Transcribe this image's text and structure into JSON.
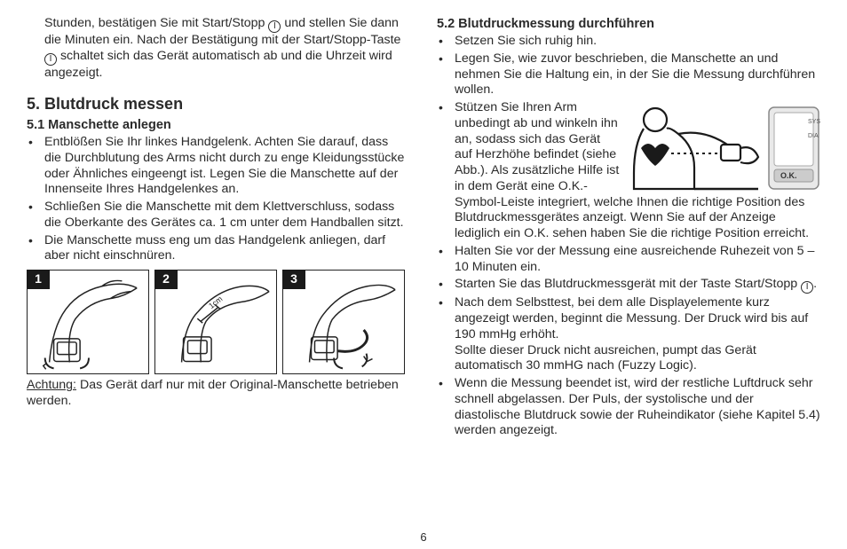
{
  "page_number": "6",
  "left": {
    "intro_para": "Stunden, bestätigen Sie mit Start/Stopp {I} und stellen Sie dann die Minuten ein. Nach der Bestätigung mit der Start/Stopp-Taste {I} schaltet sich das Gerät automatisch ab und die Uhrzeit wird angezeigt.",
    "heading": "5. Blutdruck messen",
    "subhead": "5.1 Manschette anlegen",
    "bullets": [
      "Entblößen Sie Ihr linkes Handgelenk. Achten Sie darauf, dass die Durchblutung des Arms nicht durch zu enge Kleidungsstücke oder Ähnliches eingeengt ist. Legen Sie die Manschette auf der Innenseite Ihres Handgelenkes an.",
      "Schließen Sie die Manschette mit dem Klettverschluss, sodass die Oberkante des Gerätes ca. 1 cm unter dem Handballen sitzt.",
      "Die Manschette muss eng um das Handgelenk anliegen, darf aber nicht einschnüren."
    ],
    "fig_numbers": [
      "1",
      "2",
      "3"
    ],
    "fig2_label": "1cm",
    "caution_label": "Achtung:",
    "caution_text": " Das Gerät darf nur mit der Original-Manschette betrieben werden."
  },
  "right": {
    "subhead": "5.2 Blutdruckmessung durchführen",
    "bullets_a": [
      "Setzen Sie sich ruhig hin.",
      "Legen Sie, wie zuvor beschrieben, die Manschette an und nehmen Sie die Haltung ein, in der Sie die Messung durchführen wollen."
    ],
    "float_bullet": "Stützen Sie Ihren Arm unbedingt ab und winkeln ihn an, sodass sich das Gerät auf Herzhöhe befindet (siehe Abb.). Als zusätzliche Hilfe ist in dem Gerät eine O.K.-Symbol-Leiste integriert, welche Ihnen die richtige Position des Blutdruckmess­gerätes anzeigt. Wenn Sie auf der Anzeige lediglich ein O.K. sehen haben Sie die richtige Position erreicht.",
    "bullets_b": [
      "Halten Sie vor der Messung eine ausreichende Ruhezeit von 5 –10 Minuten ein.",
      "Starten Sie das Blutdruckmessgerät mit der Taste Start/Stopp {I}.",
      "Nach dem Selbsttest, bei dem alle Displayelemente kurz angezeigt werden, beginnt die Messung. Der Druck wird bis auf 190 mmHg erhöht.\nSollte dieser Druck nicht ausreichen, pumpt das Gerät automatisch 30 mmHG nach (Fuzzy Logic).",
      "Wenn die Messung beendet ist, wird der restliche Luft­druck sehr schnell abgelassen. Der Puls, der systolische und der diastolische Blutdruck sowie der Ruheindikator (siehe Kapitel 5.4) werden angezeigt."
    ],
    "device_labels": {
      "sys": "SYS",
      "dia": "DIA",
      "ok": "O.K."
    }
  }
}
